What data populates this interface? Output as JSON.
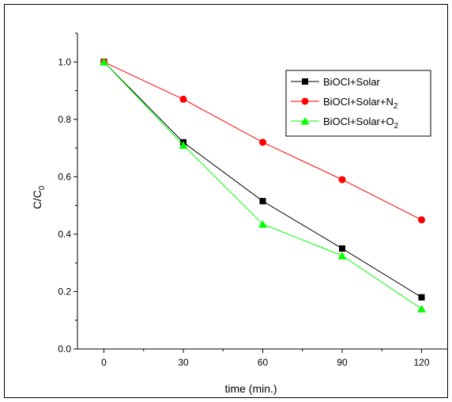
{
  "chart_data": {
    "type": "line",
    "xlabel": "time (min.)",
    "ylabel_main": "C/C",
    "ylabel_sub": "0",
    "xlim": [
      -10,
      130
    ],
    "ylim": [
      0.0,
      1.1
    ],
    "xticks": [
      0,
      30,
      60,
      90,
      120
    ],
    "yticks": [
      0.0,
      0.2,
      0.4,
      0.6,
      0.8,
      1.0
    ],
    "xtick_labels": [
      "0",
      "30",
      "60",
      "90",
      "120"
    ],
    "ytick_labels": [
      "0.0",
      "0.2",
      "0.4",
      "0.6",
      "0.8",
      "1.0"
    ],
    "legend_position": "top-right",
    "series": [
      {
        "name_main": "BiOCl+Solar",
        "name_sub": "",
        "color": "#000000",
        "marker": "square",
        "x": [
          0,
          30,
          60,
          90,
          120
        ],
        "y": [
          1.0,
          0.72,
          0.515,
          0.35,
          0.18
        ]
      },
      {
        "name_main": "BiOCl+Solar+N",
        "name_sub": "2",
        "color": "#ff0000",
        "marker": "circle",
        "x": [
          0,
          30,
          60,
          90,
          120
        ],
        "y": [
          1.0,
          0.87,
          0.72,
          0.59,
          0.45
        ]
      },
      {
        "name_main": "BiOCl+Solar+O",
        "name_sub": "2",
        "color": "#00ff00",
        "marker": "triangle",
        "x": [
          0,
          30,
          60,
          90,
          120
        ],
        "y": [
          1.0,
          0.71,
          0.435,
          0.325,
          0.14
        ]
      }
    ]
  }
}
